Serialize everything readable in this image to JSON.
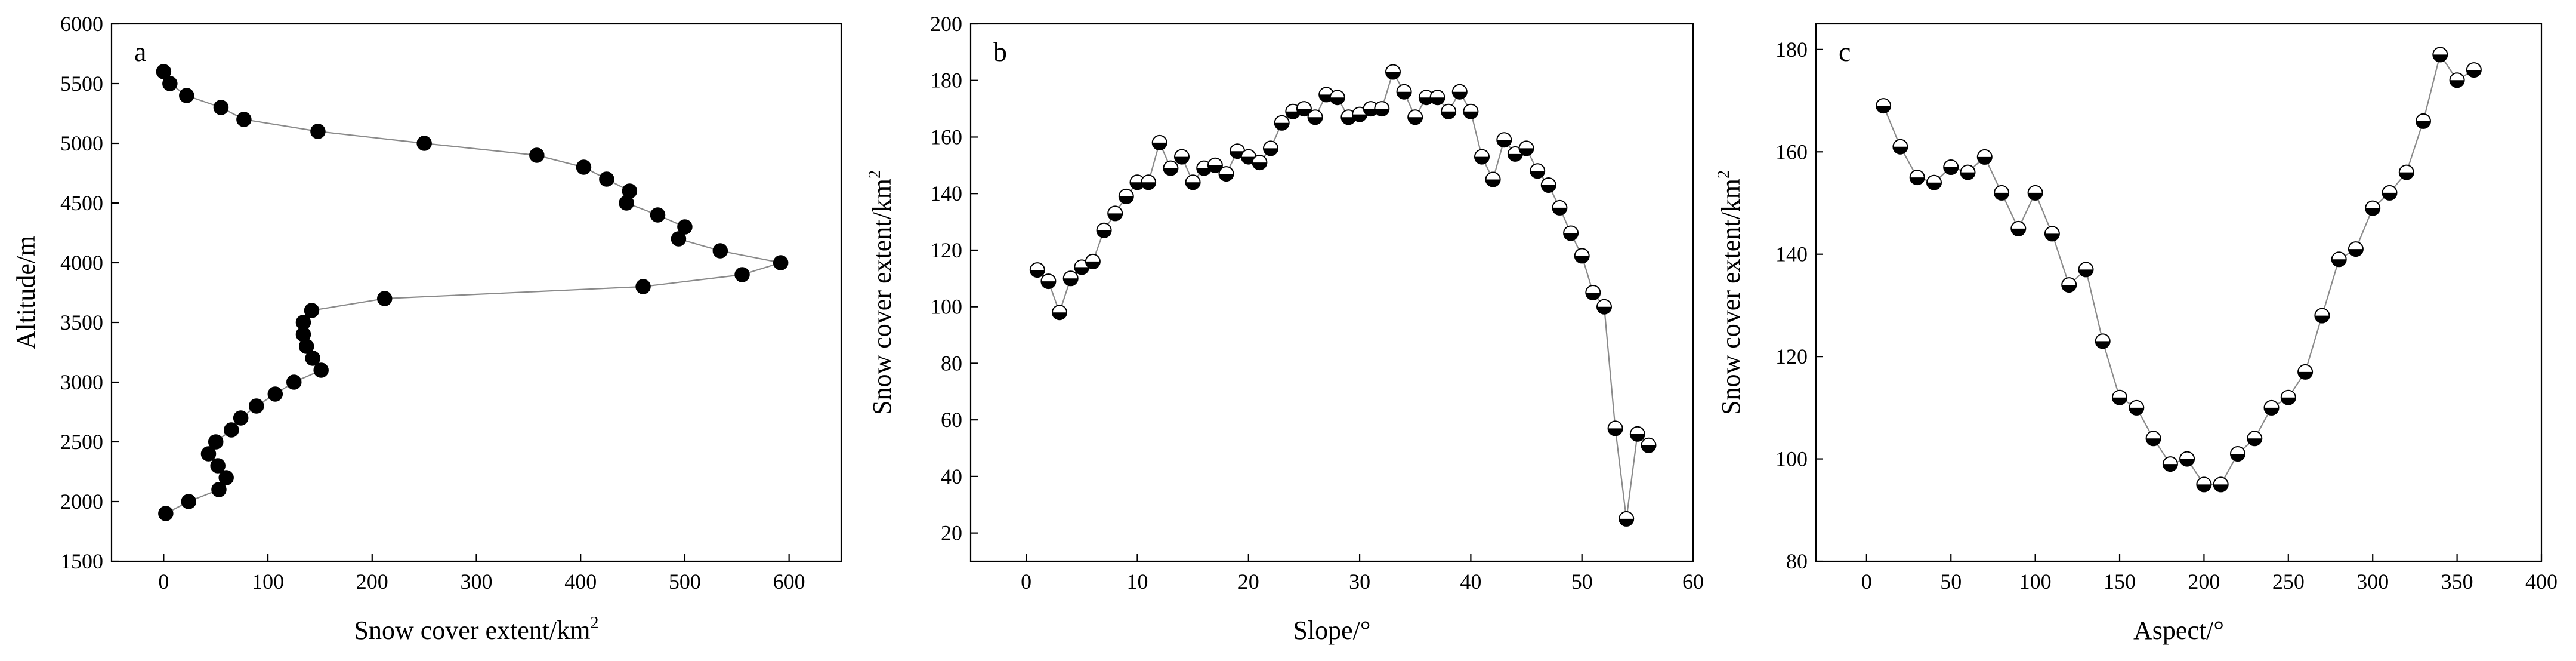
{
  "chart_data": [
    {
      "type": "scatter",
      "panel": "a",
      "xlabel": "Snow cover extent/km",
      "xlabel_sup": "2",
      "ylabel": "Altitude/m",
      "xlim": [
        -50,
        650
      ],
      "ylim": [
        1500,
        6000
      ],
      "xticks": [
        0,
        100,
        200,
        300,
        400,
        500,
        600
      ],
      "yticks": [
        1500,
        2000,
        2500,
        3000,
        3500,
        4000,
        4500,
        5000,
        5500,
        6000
      ],
      "marker": "filled",
      "points": [
        [
          0,
          5600
        ],
        [
          6,
          5500
        ],
        [
          22,
          5400
        ],
        [
          55,
          5300
        ],
        [
          77,
          5200
        ],
        [
          148,
          5100
        ],
        [
          250,
          5000
        ],
        [
          358,
          4900
        ],
        [
          403,
          4800
        ],
        [
          425,
          4700
        ],
        [
          447,
          4600
        ],
        [
          444,
          4500
        ],
        [
          474,
          4400
        ],
        [
          500,
          4300
        ],
        [
          494,
          4200
        ],
        [
          534,
          4100
        ],
        [
          592,
          4000
        ],
        [
          555,
          3900
        ],
        [
          460,
          3800
        ],
        [
          212,
          3700
        ],
        [
          142,
          3600
        ],
        [
          134,
          3500
        ],
        [
          134,
          3400
        ],
        [
          137,
          3300
        ],
        [
          143,
          3200
        ],
        [
          151,
          3100
        ],
        [
          125,
          3000
        ],
        [
          107,
          2900
        ],
        [
          89,
          2800
        ],
        [
          74,
          2700
        ],
        [
          65,
          2600
        ],
        [
          50,
          2500
        ],
        [
          43,
          2400
        ],
        [
          52,
          2300
        ],
        [
          60,
          2200
        ],
        [
          53,
          2100
        ],
        [
          24,
          2000
        ],
        [
          2,
          1900
        ]
      ]
    },
    {
      "type": "scatter",
      "panel": "b",
      "xlabel": "Slope/°",
      "ylabel": "Snow cover extent/km",
      "ylabel_sup": "2",
      "xlim": [
        -5,
        60
      ],
      "ylim": [
        10,
        200
      ],
      "xticks": [
        0,
        10,
        20,
        30,
        40,
        50,
        60
      ],
      "yticks": [
        20,
        40,
        60,
        80,
        100,
        120,
        140,
        160,
        180,
        200
      ],
      "marker": "half-filled",
      "points": [
        [
          1,
          113
        ],
        [
          2,
          109
        ],
        [
          3,
          98
        ],
        [
          4,
          110
        ],
        [
          5,
          114
        ],
        [
          6,
          116
        ],
        [
          7,
          127
        ],
        [
          8,
          133
        ],
        [
          9,
          139
        ],
        [
          10,
          144
        ],
        [
          11,
          144
        ],
        [
          12,
          158
        ],
        [
          13,
          149
        ],
        [
          14,
          153
        ],
        [
          15,
          144
        ],
        [
          16,
          149
        ],
        [
          17,
          150
        ],
        [
          18,
          147
        ],
        [
          19,
          155
        ],
        [
          20,
          153
        ],
        [
          21,
          151
        ],
        [
          22,
          156
        ],
        [
          23,
          165
        ],
        [
          24,
          169
        ],
        [
          25,
          170
        ],
        [
          26,
          167
        ],
        [
          27,
          175
        ],
        [
          28,
          174
        ],
        [
          29,
          167
        ],
        [
          30,
          168
        ],
        [
          31,
          170
        ],
        [
          32,
          170
        ],
        [
          33,
          183
        ],
        [
          34,
          176
        ],
        [
          35,
          167
        ],
        [
          36,
          174
        ],
        [
          37,
          174
        ],
        [
          38,
          169
        ],
        [
          39,
          176
        ],
        [
          40,
          169
        ],
        [
          41,
          153
        ],
        [
          42,
          145
        ],
        [
          43,
          159
        ],
        [
          44,
          154
        ],
        [
          45,
          156
        ],
        [
          46,
          148
        ],
        [
          47,
          143
        ],
        [
          48,
          135
        ],
        [
          49,
          126
        ],
        [
          50,
          118
        ],
        [
          51,
          105
        ],
        [
          52,
          100
        ],
        [
          53,
          57
        ],
        [
          54,
          25
        ],
        [
          55,
          55
        ],
        [
          56,
          51
        ]
      ]
    },
    {
      "type": "scatter",
      "panel": "c",
      "xlabel": "Aspect/°",
      "ylabel": "Snow cover extent/km",
      "ylabel_sup": "2",
      "xlim": [
        -30,
        400
      ],
      "ylim": [
        80,
        185
      ],
      "xticks": [
        0,
        50,
        100,
        150,
        200,
        250,
        300,
        350,
        400
      ],
      "yticks": [
        80,
        100,
        120,
        140,
        160,
        180
      ],
      "marker": "half-filled",
      "points": [
        [
          10,
          169
        ],
        [
          20,
          161
        ],
        [
          30,
          155
        ],
        [
          40,
          154
        ],
        [
          50,
          157
        ],
        [
          60,
          156
        ],
        [
          70,
          159
        ],
        [
          80,
          152
        ],
        [
          90,
          145
        ],
        [
          100,
          152
        ],
        [
          110,
          144
        ],
        [
          120,
          134
        ],
        [
          130,
          137
        ],
        [
          140,
          123
        ],
        [
          150,
          112
        ],
        [
          160,
          110
        ],
        [
          170,
          104
        ],
        [
          180,
          99
        ],
        [
          190,
          100
        ],
        [
          200,
          95
        ],
        [
          210,
          95
        ],
        [
          220,
          101
        ],
        [
          230,
          104
        ],
        [
          240,
          110
        ],
        [
          250,
          112
        ],
        [
          260,
          117
        ],
        [
          270,
          128
        ],
        [
          280,
          139
        ],
        [
          290,
          141
        ],
        [
          300,
          149
        ],
        [
          310,
          152
        ],
        [
          320,
          156
        ],
        [
          330,
          166
        ],
        [
          340,
          179
        ],
        [
          350,
          174
        ],
        [
          360,
          176
        ]
      ]
    }
  ]
}
